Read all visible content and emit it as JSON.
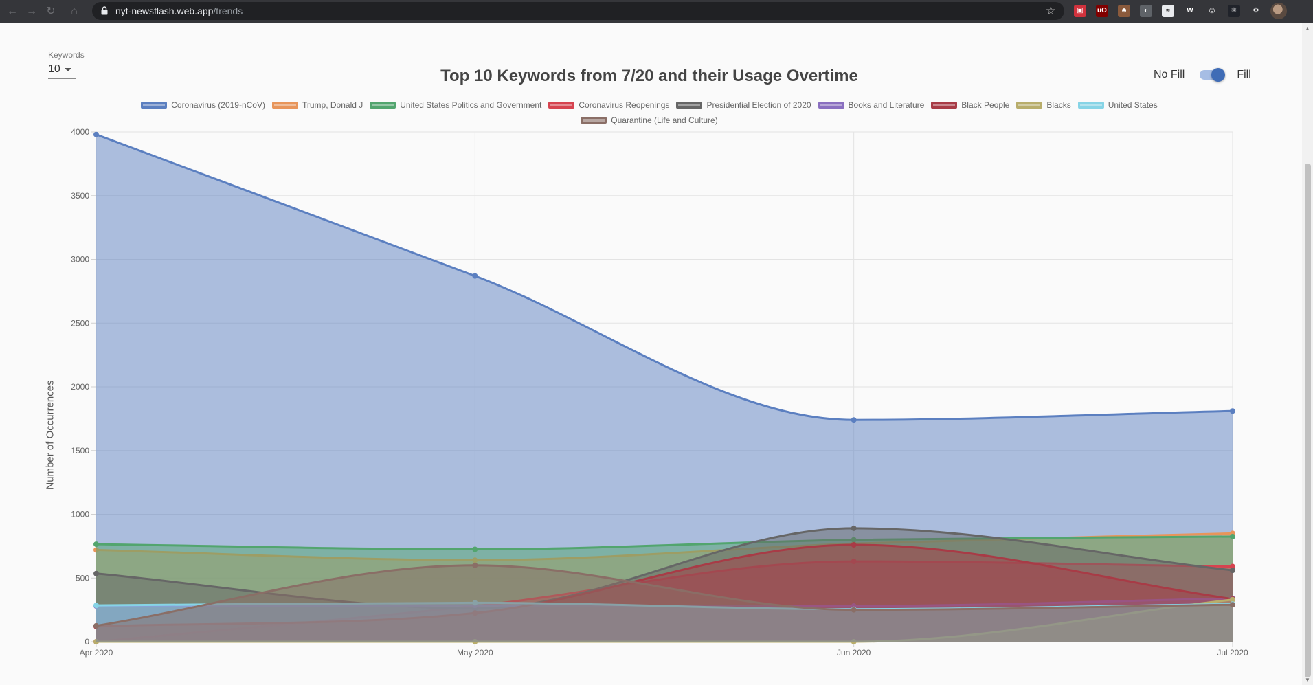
{
  "browser": {
    "url_host": "nyt-newsflash.web.app",
    "url_path": "/trends",
    "extensions": [
      {
        "name": "extension-1-icon",
        "color": "#d0323d",
        "glyph": "▣"
      },
      {
        "name": "ublock-origin-icon",
        "color": "#800000",
        "glyph": "uO"
      },
      {
        "name": "extension-3-icon",
        "color": "#8a5a3c",
        "glyph": "☻"
      },
      {
        "name": "extension-4-icon",
        "color": "#5f6368",
        "glyph": "◐"
      },
      {
        "name": "extension-5-icon",
        "color": "#e8eaed",
        "glyph": "≈"
      },
      {
        "name": "extension-6-icon",
        "color": "#35363a",
        "glyph": "W"
      },
      {
        "name": "extension-7-icon",
        "color": "#35363a",
        "glyph": "◎"
      },
      {
        "name": "react-devtools-icon",
        "color": "#20232a",
        "glyph": "⚛"
      },
      {
        "name": "extension-9-icon",
        "color": "#35363a",
        "glyph": "⚙"
      }
    ]
  },
  "controls": {
    "keywords_label": "Keywords",
    "keywords_value": "10",
    "no_fill_label": "No Fill",
    "fill_label": "Fill",
    "fill_enabled": true
  },
  "chart_data": {
    "type": "area",
    "title": "Top 10 Keywords from 7/20 and their Usage Overtime",
    "xlabel": "",
    "ylabel": "Number of Occurrences",
    "x": [
      "Apr 2020",
      "May 2020",
      "Jun 2020",
      "Jul 2020"
    ],
    "ylim": [
      0,
      4000
    ],
    "yticks": [
      0,
      500,
      1000,
      1500,
      2000,
      2500,
      3000,
      3500,
      4000
    ],
    "grid": true,
    "legend_position": "top",
    "series": [
      {
        "name": "Coronavirus (2019-nCoV)",
        "color": "#5b7fc0",
        "values": [
          3980,
          2870,
          1740,
          1810
        ]
      },
      {
        "name": "Trump, Donald J",
        "color": "#e8955a",
        "values": [
          720,
          640,
          770,
          850
        ]
      },
      {
        "name": "United States Politics and Government",
        "color": "#52a56e",
        "values": [
          765,
          725,
          800,
          825
        ]
      },
      {
        "name": "Coronavirus Reopenings",
        "color": "#d6434f",
        "values": [
          0,
          280,
          630,
          590
        ]
      },
      {
        "name": "Presidential Election of 2020",
        "color": "#666666",
        "values": [
          535,
          260,
          890,
          560
        ]
      },
      {
        "name": "Books and Literature",
        "color": "#8a6fc0",
        "values": [
          280,
          285,
          280,
          340
        ]
      },
      {
        "name": "Black People",
        "color": "#a83b46",
        "values": [
          120,
          225,
          760,
          335
        ]
      },
      {
        "name": "Blacks",
        "color": "#b8ad6b",
        "values": [
          0,
          0,
          0,
          330
        ]
      },
      {
        "name": "United States",
        "color": "#86d4e6",
        "values": [
          285,
          305,
          255,
          295
        ]
      },
      {
        "name": "Quarantine (Life and Culture)",
        "color": "#8a6e66",
        "values": [
          125,
          600,
          250,
          290
        ]
      }
    ]
  }
}
